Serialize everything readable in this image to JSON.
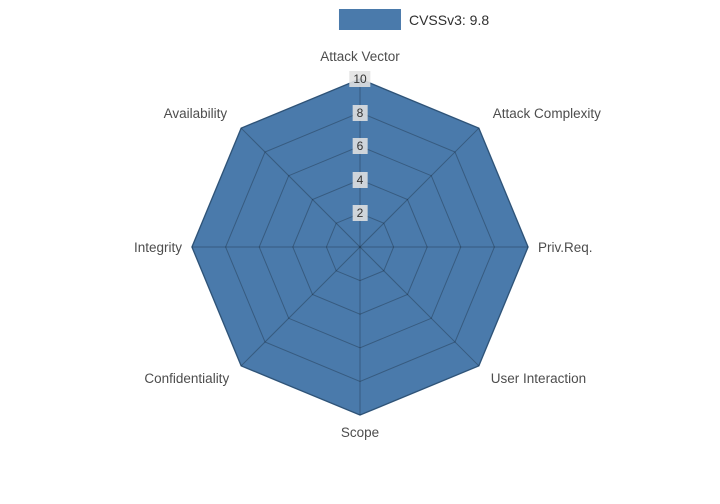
{
  "legend": {
    "label": "CVSSv3: 9.8",
    "swatch_color": "#4a7aab"
  },
  "chart_data": {
    "type": "radar",
    "title": "CVSSv3: 9.8",
    "categories": [
      "Attack Vector",
      "Attack Complexity",
      "Priv.Req.",
      "User Interaction",
      "Scope",
      "Confidentiality",
      "Integrity",
      "Availability"
    ],
    "series": [
      {
        "name": "CVSSv3: 9.8",
        "values": [
          10,
          10,
          10,
          10,
          10,
          10,
          10,
          10
        ],
        "fill_color": "#4a7aab",
        "line_color": "#3f6c99"
      }
    ],
    "radial_ticks": [
      2,
      4,
      6,
      8,
      10
    ],
    "radial_range": [
      0,
      10
    ],
    "angular_start_deg": 90,
    "direction": "clockwise",
    "grid": true,
    "grid_color": "rgba(0,0,0,0.25)",
    "tick_label_bg": "rgba(225,225,225,0.88)",
    "tick_label_color": "#333333",
    "axis_label_color": "#4d4d4d",
    "legend_position": "top-center"
  }
}
